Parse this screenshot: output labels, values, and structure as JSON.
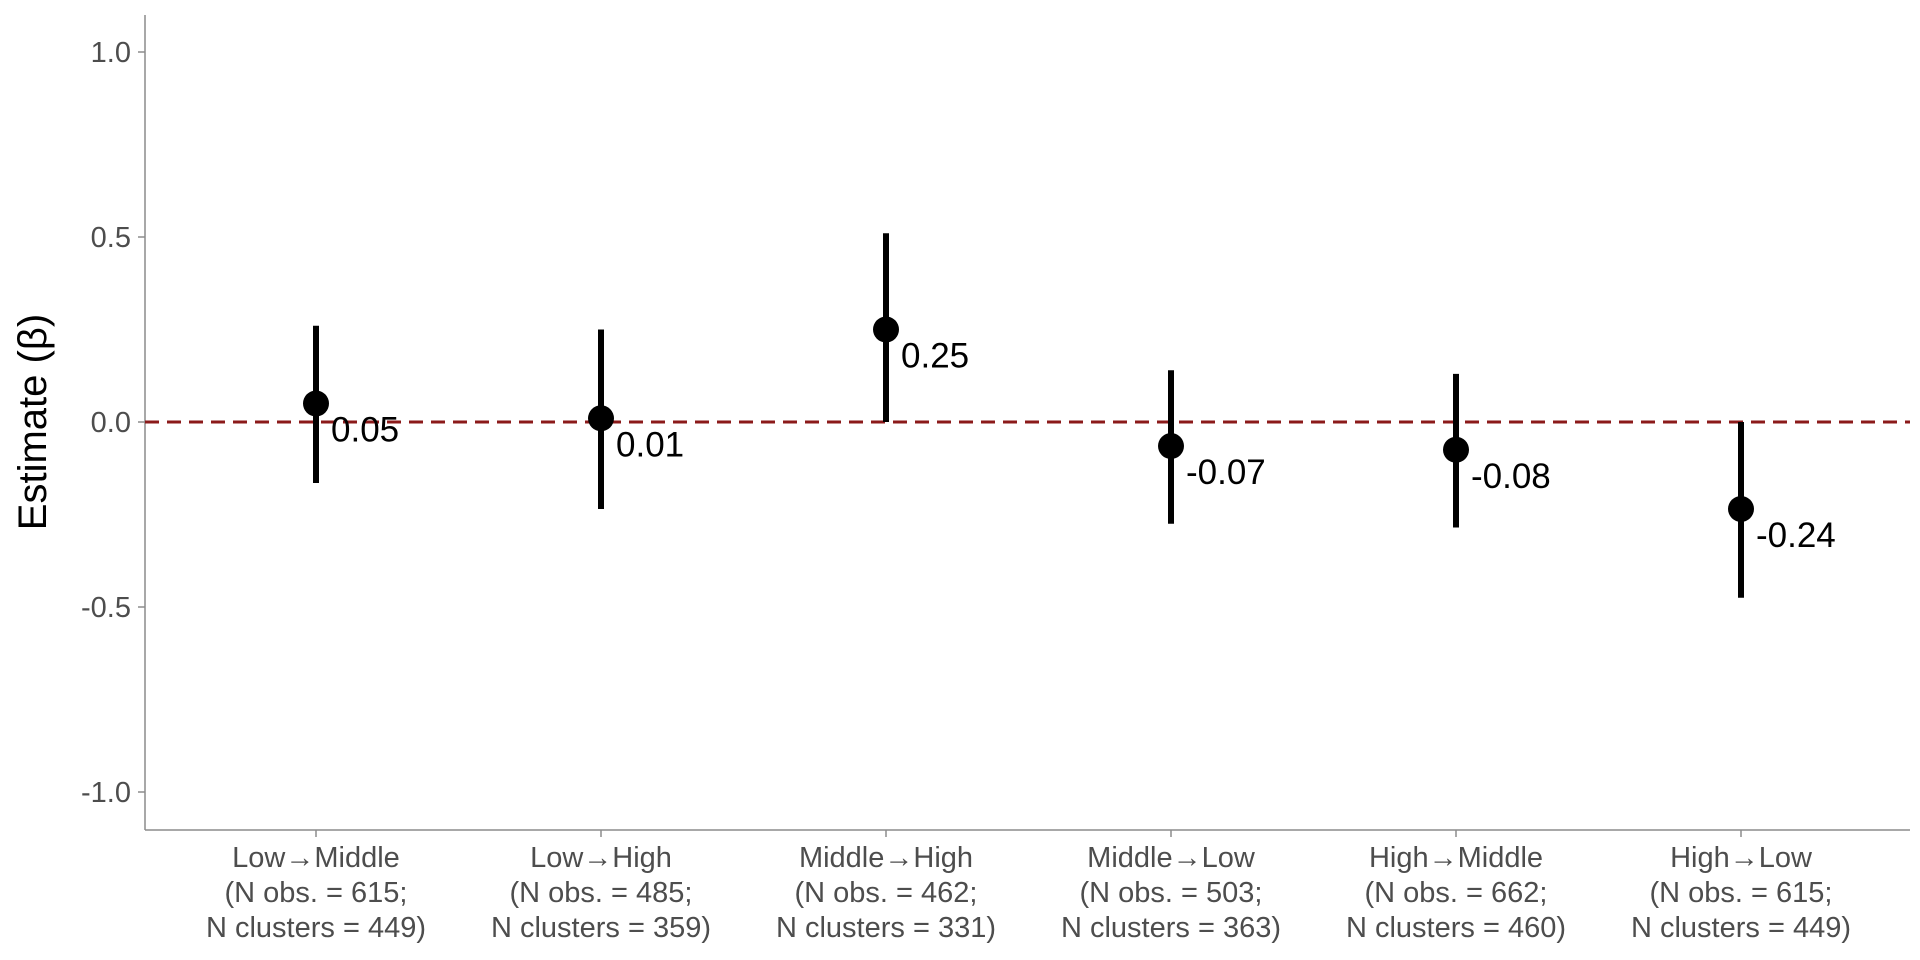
{
  "chart_data": {
    "type": "scatter",
    "title": "",
    "xlabel": "",
    "ylabel": "Estimate (β)",
    "ylim": [
      -1.1,
      1.1
    ],
    "yticks": [
      "1.0",
      "0.5",
      "0.0",
      "-0.5",
      "-1.0"
    ],
    "ytick_values": [
      1.0,
      0.5,
      0.0,
      -0.5,
      -1.0
    ],
    "grid": false,
    "reference_line": {
      "y": 0.0,
      "style": "dashed",
      "color": "#8b1a1a"
    },
    "point_color": "#000000",
    "categories": [
      {
        "label": "Low→Middle",
        "obs": "(N obs. = 615;",
        "clusters": "N clusters = 449)"
      },
      {
        "label": "Low→High",
        "obs": "(N obs. = 485;",
        "clusters": "N clusters = 359)"
      },
      {
        "label": "Middle→High",
        "obs": "(N obs. = 462;",
        "clusters": "N clusters = 331)"
      },
      {
        "label": "Middle→Low",
        "obs": "(N obs. = 503;",
        "clusters": "N clusters = 363)"
      },
      {
        "label": "High→Middle",
        "obs": "(N obs. = 662;",
        "clusters": "N clusters = 460)"
      },
      {
        "label": "High→Low",
        "obs": "(N obs. = 615;",
        "clusters": "N clusters = 449)"
      }
    ],
    "estimates": [
      0.05,
      0.01,
      0.25,
      -0.065,
      -0.075,
      -0.235
    ],
    "ci_lower": [
      -0.165,
      -0.235,
      0.0,
      -0.275,
      -0.285,
      -0.475
    ],
    "ci_upper": [
      0.26,
      0.25,
      0.51,
      0.14,
      0.13,
      0.0
    ],
    "value_labels": [
      "0.05",
      "0.01",
      "0.25",
      "-0.07",
      "-0.08",
      "-0.24"
    ]
  }
}
